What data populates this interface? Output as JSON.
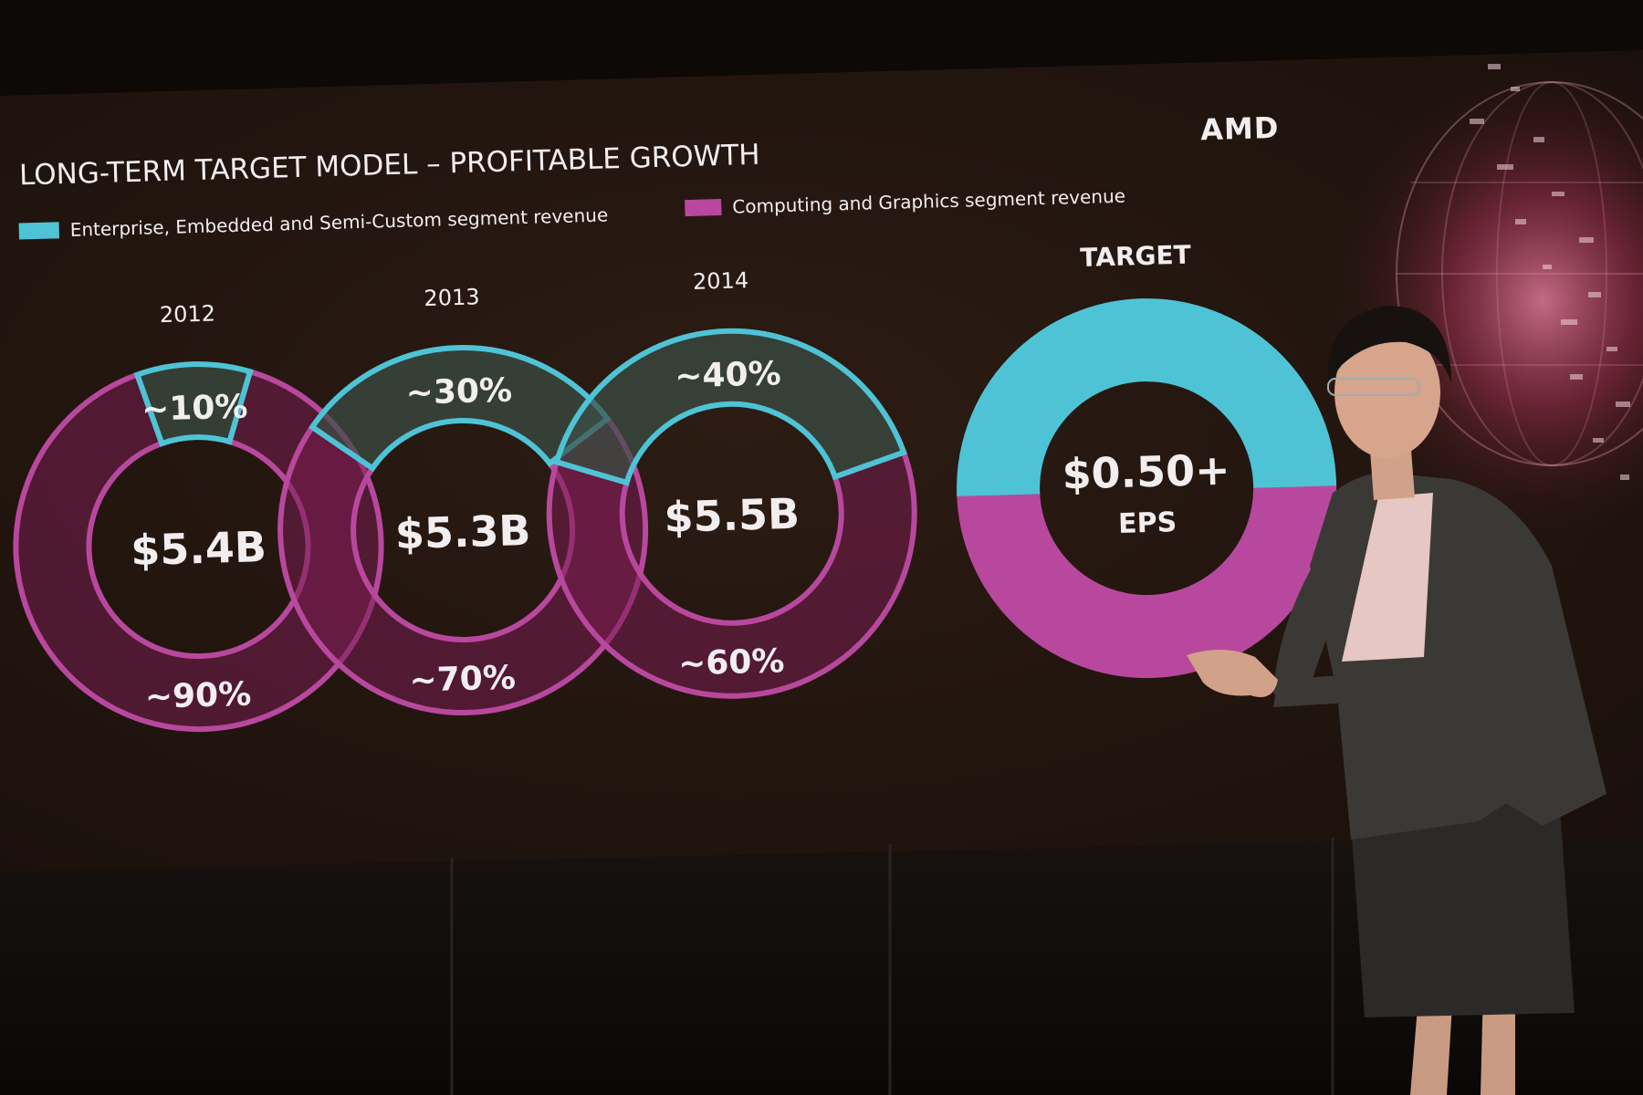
{
  "slide": {
    "title": "LONG-TERM TARGET MODEL – PROFITABLE GROWTH",
    "brand": "AMD",
    "legend": [
      {
        "label": "Enterprise, Embedded and Semi-Custom segment revenue",
        "color": "#4fc3d6"
      },
      {
        "label": "Computing and Graphics segment revenue",
        "color": "#b8489e"
      }
    ]
  },
  "colors": {
    "enterprise": "#4fc3d6",
    "computing": "#b8489e",
    "screen_bg": "#24160f",
    "room": "#0c0907"
  },
  "chart_data": {
    "type": "pie",
    "series_names": [
      "Enterprise, Embedded and Semi-Custom segment revenue",
      "Computing and Graphics segment revenue"
    ],
    "rings": [
      {
        "label": "2012",
        "total": "$5.4B",
        "enterprise_pct": 10,
        "computing_pct": 90,
        "enterprise_label": "~10%",
        "computing_label": "~90%"
      },
      {
        "label": "2013",
        "total": "$5.3B",
        "enterprise_pct": 30,
        "computing_pct": 70,
        "enterprise_label": "~30%",
        "computing_label": "~70%"
      },
      {
        "label": "2014",
        "total": "$5.5B",
        "enterprise_pct": 40,
        "computing_pct": 60,
        "enterprise_label": "~40%",
        "computing_label": "~60%"
      },
      {
        "label": "TARGET",
        "total": "$0.50+",
        "subtitle": "EPS",
        "enterprise_pct": 50,
        "computing_pct": 50,
        "enterprise_label": "",
        "computing_label": ""
      }
    ]
  }
}
